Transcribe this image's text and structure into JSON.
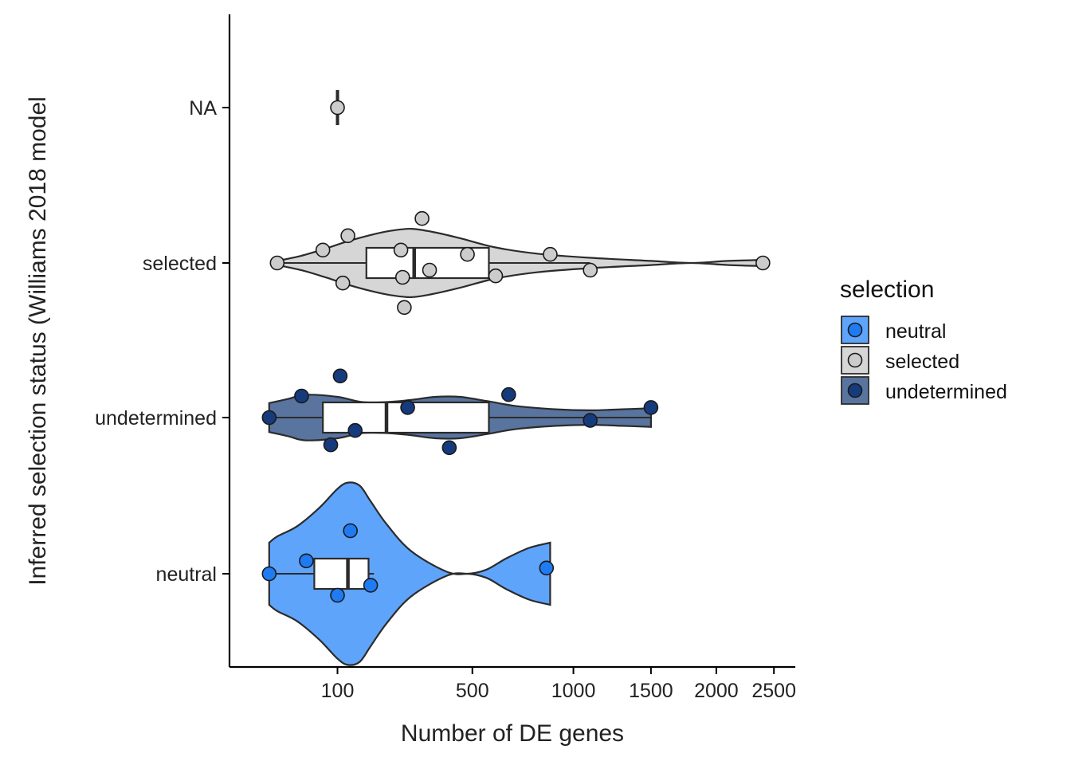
{
  "colors": {
    "neutral": "#5ea4fb",
    "neutral_point": "#1f7bf2",
    "selected": "#d6d6d6",
    "selected_point": "#cccccc",
    "undetermined": "#58749f",
    "undetermined_point": "#163b7d",
    "outline": "#2b2b2b"
  },
  "chart_data": {
    "type": "violin",
    "xlabel": "Number of DE genes",
    "ylabel": "Inferred selection status (Williams 2018 model",
    "x_scale": "sqrt",
    "xlim": [
      0,
      2550
    ],
    "x_ticks": [
      100,
      500,
      1000,
      1500,
      2000,
      2500
    ],
    "x_tick_labels": [
      "100",
      "500",
      "1000",
      "1500",
      "2000",
      "2500"
    ],
    "categories": [
      "neutral",
      "undetermined",
      "selected",
      "NA"
    ],
    "legend": {
      "title": "selection",
      "position": "right",
      "entries": [
        "neutral",
        "selected",
        "undetermined"
      ]
    },
    "series": [
      {
        "name": "neutral",
        "category": "neutral",
        "points": [
          {
            "x": 14,
            "jitter": 0.0
          },
          {
            "x": 51,
            "jitter": -0.09
          },
          {
            "x": 100,
            "jitter": 0.15
          },
          {
            "x": 125,
            "jitter": -0.3
          },
          {
            "x": 170,
            "jitter": 0.08
          },
          {
            "x": 850,
            "jitter": -0.04
          }
        ],
        "box": {
          "min": 14,
          "q1": 62,
          "median": 120,
          "q3": 165,
          "max": 178
        },
        "violin": {
          "extent": [
            14,
            870
          ],
          "profile": [
            [
              14,
              0.3
            ],
            [
              20,
              0.36
            ],
            [
              40,
              0.46
            ],
            [
              70,
              0.64
            ],
            [
              100,
              0.82
            ],
            [
              120,
              0.88
            ],
            [
              145,
              0.85
            ],
            [
              170,
              0.7
            ],
            [
              210,
              0.48
            ],
            [
              280,
              0.22
            ],
            [
              400,
              0.02
            ],
            [
              480,
              0.0
            ],
            [
              560,
              0.04
            ],
            [
              650,
              0.15
            ],
            [
              760,
              0.25
            ],
            [
              870,
              0.3
            ]
          ]
        }
      },
      {
        "name": "undetermined",
        "category": "undetermined",
        "points": [
          {
            "x": 14,
            "jitter": 0.0
          },
          {
            "x": 45,
            "jitter": -0.15
          },
          {
            "x": 88,
            "jitter": 0.19
          },
          {
            "x": 105,
            "jitter": -0.29
          },
          {
            "x": 135,
            "jitter": 0.09
          },
          {
            "x": 270,
            "jitter": -0.07
          },
          {
            "x": 410,
            "jitter": 0.21
          },
          {
            "x": 660,
            "jitter": -0.16
          },
          {
            "x": 1100,
            "jitter": 0.02
          },
          {
            "x": 1500,
            "jitter": -0.07
          }
        ],
        "box": {
          "min": 14,
          "q1": 75,
          "median": 210,
          "q3": 570,
          "max": 1500
        },
        "violin": {
          "extent": [
            14,
            1500
          ],
          "profile": [
            [
              14,
              0.14
            ],
            [
              30,
              0.18
            ],
            [
              50,
              0.22
            ],
            [
              100,
              0.2
            ],
            [
              150,
              0.15
            ],
            [
              210,
              0.15
            ],
            [
              280,
              0.17
            ],
            [
              360,
              0.2
            ],
            [
              450,
              0.2
            ],
            [
              560,
              0.16
            ],
            [
              700,
              0.11
            ],
            [
              900,
              0.08
            ],
            [
              1100,
              0.07
            ],
            [
              1300,
              0.08
            ],
            [
              1500,
              0.09
            ]
          ]
        }
      },
      {
        "name": "selected",
        "category": "selected",
        "points": [
          {
            "x": 20,
            "jitter": 0.0
          },
          {
            "x": 75,
            "jitter": -0.09
          },
          {
            "x": 110,
            "jitter": 0.14
          },
          {
            "x": 120,
            "jitter": -0.19
          },
          {
            "x": 255,
            "jitter": 0.1
          },
          {
            "x": 250,
            "jitter": -0.09
          },
          {
            "x": 260,
            "jitter": 0.31
          },
          {
            "x": 315,
            "jitter": -0.31
          },
          {
            "x": 340,
            "jitter": 0.05
          },
          {
            "x": 480,
            "jitter": -0.06
          },
          {
            "x": 600,
            "jitter": 0.09
          },
          {
            "x": 870,
            "jitter": -0.06
          },
          {
            "x": 1100,
            "jitter": 0.05
          },
          {
            "x": 2400,
            "jitter": 0.0
          }
        ],
        "box": {
          "min": 20,
          "q1": 160,
          "median": 290,
          "q3": 570,
          "max": 1100
        },
        "violin": {
          "extent": [
            20,
            2430
          ],
          "profile": [
            [
              20,
              0.02
            ],
            [
              45,
              0.07
            ],
            [
              80,
              0.14
            ],
            [
              120,
              0.21
            ],
            [
              170,
              0.27
            ],
            [
              220,
              0.31
            ],
            [
              280,
              0.33
            ],
            [
              350,
              0.3
            ],
            [
              450,
              0.24
            ],
            [
              600,
              0.15
            ],
            [
              800,
              0.09
            ],
            [
              1100,
              0.05
            ],
            [
              1500,
              0.02
            ],
            [
              1800,
              0.0
            ],
            [
              2100,
              0.02
            ],
            [
              2430,
              0.03
            ]
          ]
        }
      },
      {
        "name": "selected",
        "category": "NA",
        "points": [
          {
            "x": 100,
            "jitter": 0.0
          }
        ],
        "box": {
          "min": 100,
          "q1": 100,
          "median": 100,
          "q3": 100,
          "max": 100
        },
        "violin": null
      }
    ]
  }
}
